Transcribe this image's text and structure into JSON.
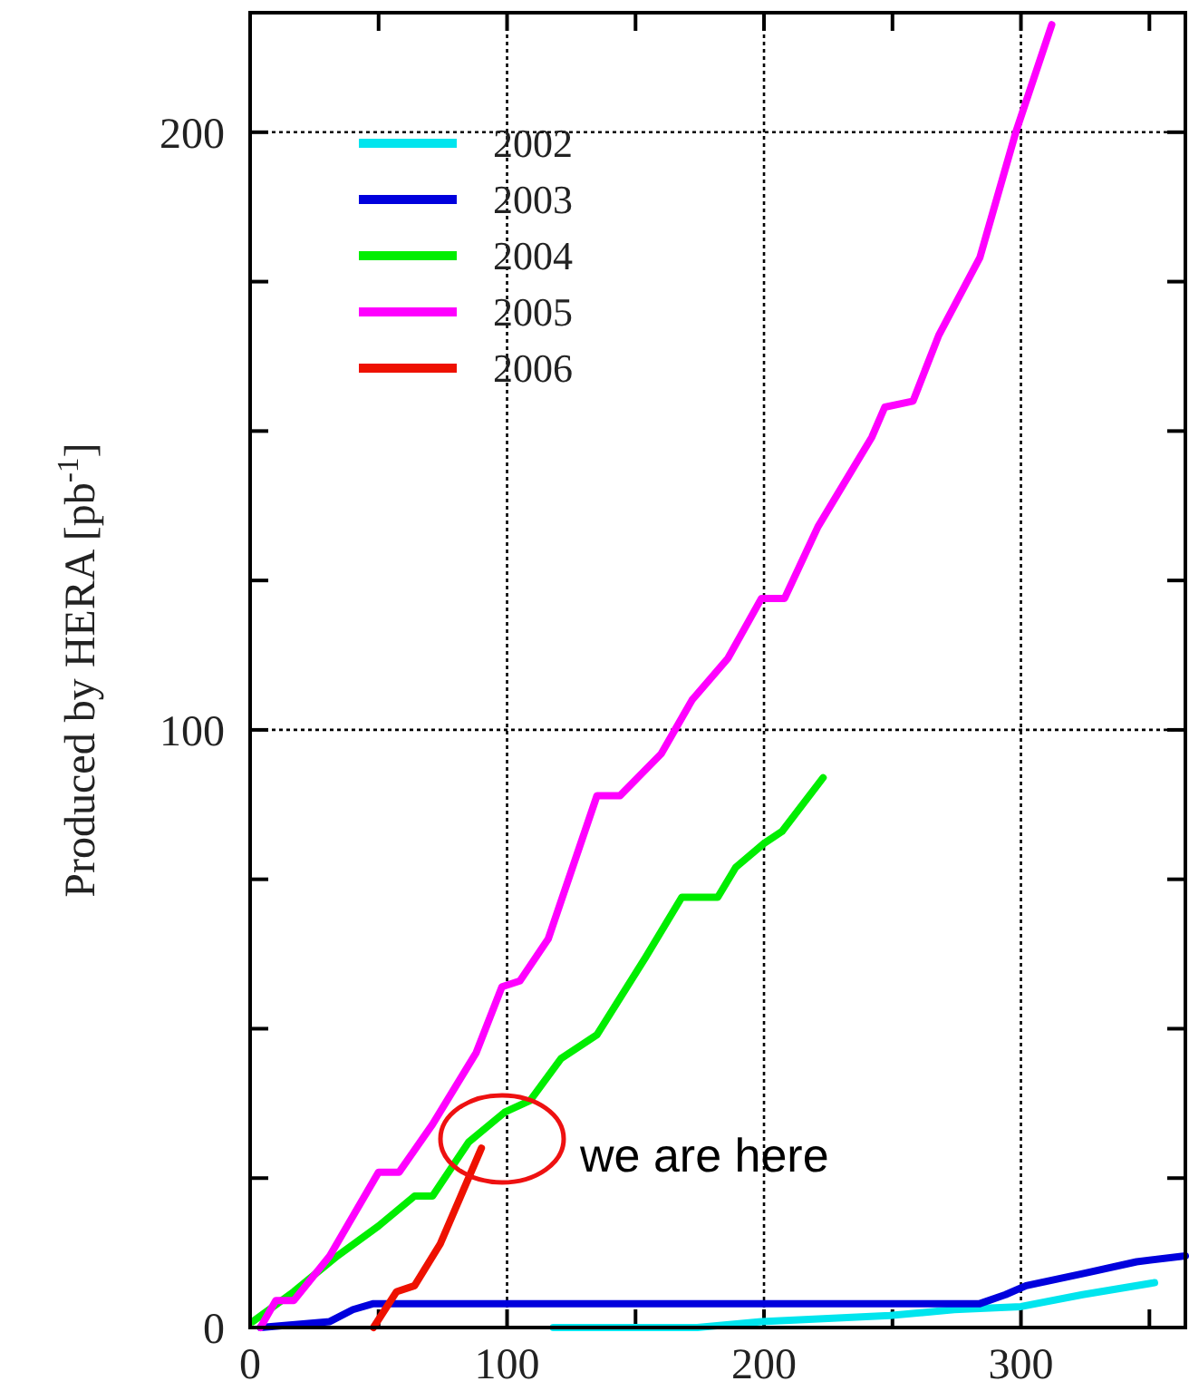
{
  "chart_data": {
    "type": "line",
    "ylabel": "Produced by HERA [pb$^{-1}$]",
    "xlim": [
      0,
      364
    ],
    "ylim": [
      0,
      220
    ],
    "xticks": [
      0,
      {
        "value": 50,
        "label": null
      },
      100,
      {
        "value": 150,
        "label": null
      },
      200,
      {
        "value": 250,
        "label": null
      },
      300,
      {
        "value": 350,
        "label": null
      }
    ],
    "yticks": [
      0,
      {
        "value": 25,
        "label": null
      },
      {
        "value": 50,
        "label": null
      },
      {
        "value": 75,
        "label": null
      },
      100,
      {
        "value": 125,
        "label": null
      },
      {
        "value": 150,
        "label": null
      },
      {
        "value": 175,
        "label": null
      },
      200
    ],
    "grid": true,
    "legend": "top left",
    "line_style": "solid",
    "marker": "none",
    "annotations": [
      "we are here"
    ],
    "series": [
      {
        "name": "2002",
        "color": "#00e5ee",
        "x": [
          118,
          174,
          199,
          249,
          274,
          300,
          324,
          352
        ],
        "values": [
          0,
          0,
          1,
          2,
          3,
          3.5,
          5.5,
          7.5
        ]
      },
      {
        "name": "2003",
        "color": "#0000dd",
        "x": [
          4,
          31,
          40,
          48,
          284,
          294,
          302,
          324,
          345,
          364
        ],
        "values": [
          0,
          1,
          3,
          4,
          4,
          5.5,
          7,
          9,
          11,
          12
        ]
      },
      {
        "name": "2004",
        "color": "#00ee00",
        "x": [
          1,
          17,
          34,
          50,
          64,
          71,
          85,
          99,
          109,
          121,
          135,
          154,
          168,
          182,
          189,
          200,
          207,
          223
        ],
        "values": [
          1,
          6,
          12,
          17,
          22,
          22,
          31,
          36,
          38,
          45,
          49,
          62,
          72,
          72,
          77,
          81,
          83,
          92
        ]
      },
      {
        "name": "2005",
        "color": "#ff00ff",
        "x": [
          4,
          10,
          17,
          31,
          50,
          58,
          71,
          88,
          98,
          105,
          116,
          135,
          144,
          160,
          172,
          186,
          199,
          208,
          221,
          228,
          242,
          247,
          258,
          268,
          284,
          298,
          312
        ],
        "values": [
          0,
          4.5,
          4.5,
          12,
          26,
          26,
          34,
          46,
          57,
          58,
          65,
          89,
          89,
          96,
          105,
          112,
          122,
          122,
          134,
          139,
          149,
          154,
          155,
          166,
          179,
          200,
          218
        ]
      },
      {
        "name": "2006",
        "color": "#ee1100",
        "x": [
          48,
          57,
          64,
          74,
          82,
          90
        ],
        "values": [
          0,
          6,
          7,
          14,
          22,
          30
        ]
      }
    ]
  }
}
